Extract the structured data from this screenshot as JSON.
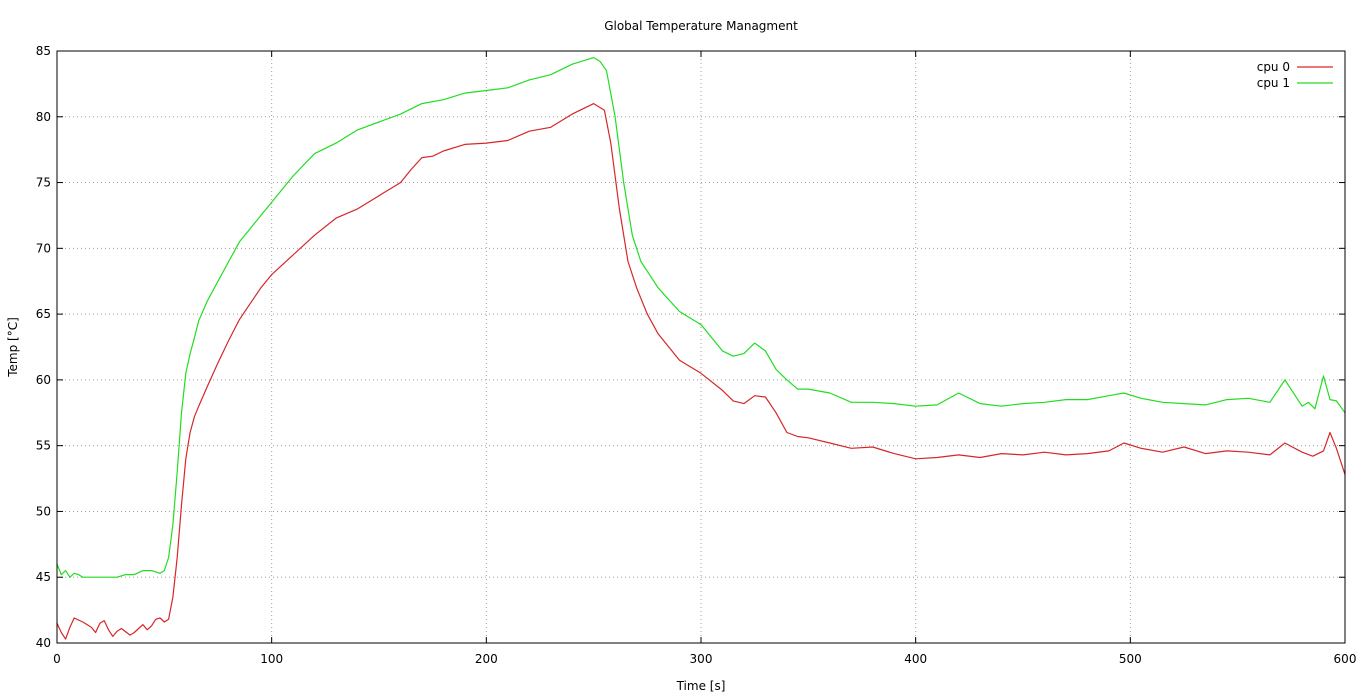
{
  "chart_data": {
    "type": "line",
    "title": "Global Temperature Managment",
    "xlabel": "Time [s]",
    "ylabel": "Temp [°C]",
    "xlim": [
      0,
      600
    ],
    "ylim": [
      40,
      85
    ],
    "xticks": [
      0,
      100,
      200,
      300,
      400,
      500,
      600
    ],
    "yticks": [
      40,
      45,
      50,
      55,
      60,
      65,
      70,
      75,
      80,
      85
    ],
    "grid": true,
    "legend_position": "top-right",
    "series": [
      {
        "name": "cpu 0",
        "color": "#d62728",
        "x": [
          0,
          2,
          4,
          6,
          8,
          12,
          16,
          18,
          20,
          22,
          24,
          26,
          28,
          30,
          34,
          36,
          38,
          40,
          42,
          44,
          46,
          48,
          50,
          52,
          54,
          56,
          58,
          60,
          62,
          64,
          66,
          70,
          75,
          80,
          85,
          90,
          95,
          100,
          110,
          120,
          130,
          140,
          150,
          160,
          165,
          170,
          175,
          180,
          190,
          200,
          210,
          220,
          230,
          240,
          250,
          255,
          258,
          262,
          266,
          270,
          275,
          280,
          290,
          300,
          310,
          315,
          320,
          325,
          330,
          335,
          340,
          345,
          350,
          360,
          370,
          380,
          390,
          400,
          410,
          420,
          430,
          440,
          450,
          460,
          470,
          480,
          490,
          497,
          505,
          515,
          525,
          535,
          545,
          555,
          565,
          572,
          580,
          585,
          590,
          593,
          596,
          600
        ],
        "values": [
          41.5,
          40.8,
          40.3,
          41.2,
          41.9,
          41.6,
          41.2,
          40.8,
          41.5,
          41.7,
          41.0,
          40.5,
          40.9,
          41.1,
          40.6,
          40.8,
          41.1,
          41.4,
          41.0,
          41.3,
          41.8,
          41.9,
          41.6,
          41.8,
          43.5,
          46.5,
          50.5,
          54.0,
          56.0,
          57.2,
          58.0,
          59.5,
          61.3,
          63.0,
          64.6,
          65.8,
          67.0,
          68.0,
          69.5,
          71.0,
          72.3,
          73.0,
          74.0,
          75.0,
          76.0,
          76.9,
          77.0,
          77.4,
          77.9,
          78.0,
          78.2,
          78.9,
          79.2,
          80.2,
          81.0,
          80.5,
          78.0,
          73.0,
          69.0,
          67.0,
          65.0,
          63.5,
          61.5,
          60.5,
          59.2,
          58.4,
          58.2,
          58.8,
          58.7,
          57.5,
          56.0,
          55.7,
          55.6,
          55.2,
          54.8,
          54.9,
          54.4,
          54.0,
          54.1,
          54.3,
          54.1,
          54.4,
          54.3,
          54.5,
          54.3,
          54.4,
          54.6,
          55.2,
          54.8,
          54.5,
          54.9,
          54.4,
          54.6,
          54.5,
          54.3,
          55.2,
          54.5,
          54.2,
          54.6,
          56.0,
          54.8,
          52.8
        ]
      },
      {
        "name": "cpu 1",
        "color": "#22dd22",
        "x": [
          0,
          2,
          4,
          6,
          8,
          10,
          12,
          16,
          20,
          24,
          28,
          32,
          36,
          40,
          44,
          48,
          50,
          52,
          54,
          56,
          58,
          60,
          62,
          64,
          66,
          70,
          75,
          80,
          85,
          90,
          95,
          100,
          110,
          120,
          130,
          140,
          150,
          160,
          170,
          180,
          190,
          200,
          210,
          220,
          230,
          240,
          250,
          253,
          256,
          260,
          264,
          268,
          272,
          276,
          280,
          290,
          300,
          310,
          315,
          320,
          325,
          330,
          335,
          340,
          345,
          350,
          360,
          370,
          380,
          390,
          400,
          410,
          420,
          430,
          440,
          450,
          460,
          470,
          480,
          490,
          497,
          505,
          515,
          525,
          535,
          545,
          555,
          565,
          572,
          580,
          583,
          586,
          590,
          593,
          596,
          600
        ],
        "values": [
          46.0,
          45.2,
          45.5,
          45.0,
          45.3,
          45.2,
          45.0,
          45.0,
          45.0,
          45.0,
          45.0,
          45.2,
          45.2,
          45.5,
          45.5,
          45.3,
          45.5,
          46.5,
          49.0,
          53.0,
          57.5,
          60.5,
          62.0,
          63.2,
          64.5,
          66.0,
          67.5,
          69.0,
          70.5,
          71.5,
          72.5,
          73.5,
          75.5,
          77.2,
          78.0,
          79.0,
          79.6,
          80.2,
          81.0,
          81.3,
          81.8,
          82.0,
          82.2,
          82.8,
          83.2,
          84.0,
          84.5,
          84.2,
          83.5,
          80.0,
          75.0,
          71.0,
          69.0,
          68.0,
          67.0,
          65.2,
          64.2,
          62.2,
          61.8,
          62.0,
          62.8,
          62.2,
          60.8,
          60.0,
          59.3,
          59.3,
          59.0,
          58.3,
          58.3,
          58.2,
          58.0,
          58.1,
          59.0,
          58.2,
          58.0,
          58.2,
          58.3,
          58.5,
          58.5,
          58.8,
          59.0,
          58.6,
          58.3,
          58.2,
          58.1,
          58.5,
          58.6,
          58.3,
          60.0,
          58.0,
          58.3,
          57.8,
          60.3,
          58.5,
          58.4,
          57.5
        ]
      }
    ]
  }
}
